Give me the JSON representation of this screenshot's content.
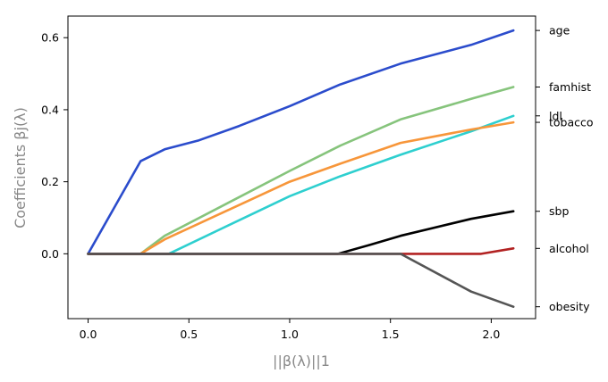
{
  "chart_data": {
    "type": "line",
    "xlabel": "||β(λ)||1",
    "ylabel": "Coefficients βj(λ)",
    "xlim": [
      -0.1,
      2.22
    ],
    "ylim": [
      -0.18,
      0.66
    ],
    "xticks": [
      0.0,
      0.5,
      1.0,
      1.5,
      2.0
    ],
    "xtick_labels": [
      "0.0",
      "0.5",
      "1.0",
      "1.5",
      "2.0"
    ],
    "yticks": [
      0.0,
      0.2,
      0.4,
      0.6
    ],
    "ytick_labels": [
      "0.0",
      "0.2",
      "0.4",
      "0.6"
    ],
    "grid": false,
    "series": [
      {
        "name": "age",
        "color": "#2b4ccc",
        "x": [
          0.0,
          0.26,
          0.38,
          0.55,
          0.75,
          1.0,
          1.25,
          1.55,
          1.9,
          2.11
        ],
        "y": [
          0.0,
          0.257,
          0.29,
          0.315,
          0.355,
          0.41,
          0.47,
          0.528,
          0.58,
          0.62
        ]
      },
      {
        "name": "famhist",
        "color": "#86c47c",
        "x": [
          0.0,
          0.26,
          0.38,
          1.0,
          1.25,
          1.55,
          1.9,
          2.11
        ],
        "y": [
          0.0,
          0.0,
          0.05,
          0.23,
          0.3,
          0.373,
          0.43,
          0.463
        ]
      },
      {
        "name": "ldl",
        "color": "#2ecfcf",
        "x": [
          0.0,
          0.4,
          1.0,
          1.25,
          1.55,
          1.9,
          2.11
        ],
        "y": [
          0.0,
          0.0,
          0.16,
          0.215,
          0.275,
          0.34,
          0.383
        ]
      },
      {
        "name": "tobacco",
        "color": "#f7963a",
        "x": [
          0.0,
          0.26,
          0.38,
          1.0,
          1.25,
          1.55,
          1.9,
          2.11
        ],
        "y": [
          0.0,
          0.0,
          0.04,
          0.2,
          0.25,
          0.308,
          0.345,
          0.365
        ]
      },
      {
        "name": "sbp",
        "color": "#000000",
        "x": [
          0.0,
          1.24,
          1.4,
          1.55,
          1.9,
          2.11
        ],
        "y": [
          0.0,
          0.0,
          0.025,
          0.05,
          0.097,
          0.118
        ]
      },
      {
        "name": "alcohol",
        "color": "#b22222",
        "x": [
          0.0,
          1.95,
          2.11
        ],
        "y": [
          0.0,
          0.0,
          0.015
        ]
      },
      {
        "name": "obesity",
        "color": "#555555",
        "x": [
          0.0,
          1.55,
          1.9,
          2.11
        ],
        "y": [
          0.0,
          0.0,
          -0.105,
          -0.147
        ]
      }
    ],
    "right_labels": [
      {
        "name": "age",
        "y": 0.62
      },
      {
        "name": "famhist",
        "y": 0.463
      },
      {
        "name": "ldl",
        "y": 0.383
      },
      {
        "name": "tobacco",
        "y": 0.365
      },
      {
        "name": "sbp",
        "y": 0.118
      },
      {
        "name": "alcohol",
        "y": 0.015
      },
      {
        "name": "obesity",
        "y": -0.147
      }
    ]
  }
}
